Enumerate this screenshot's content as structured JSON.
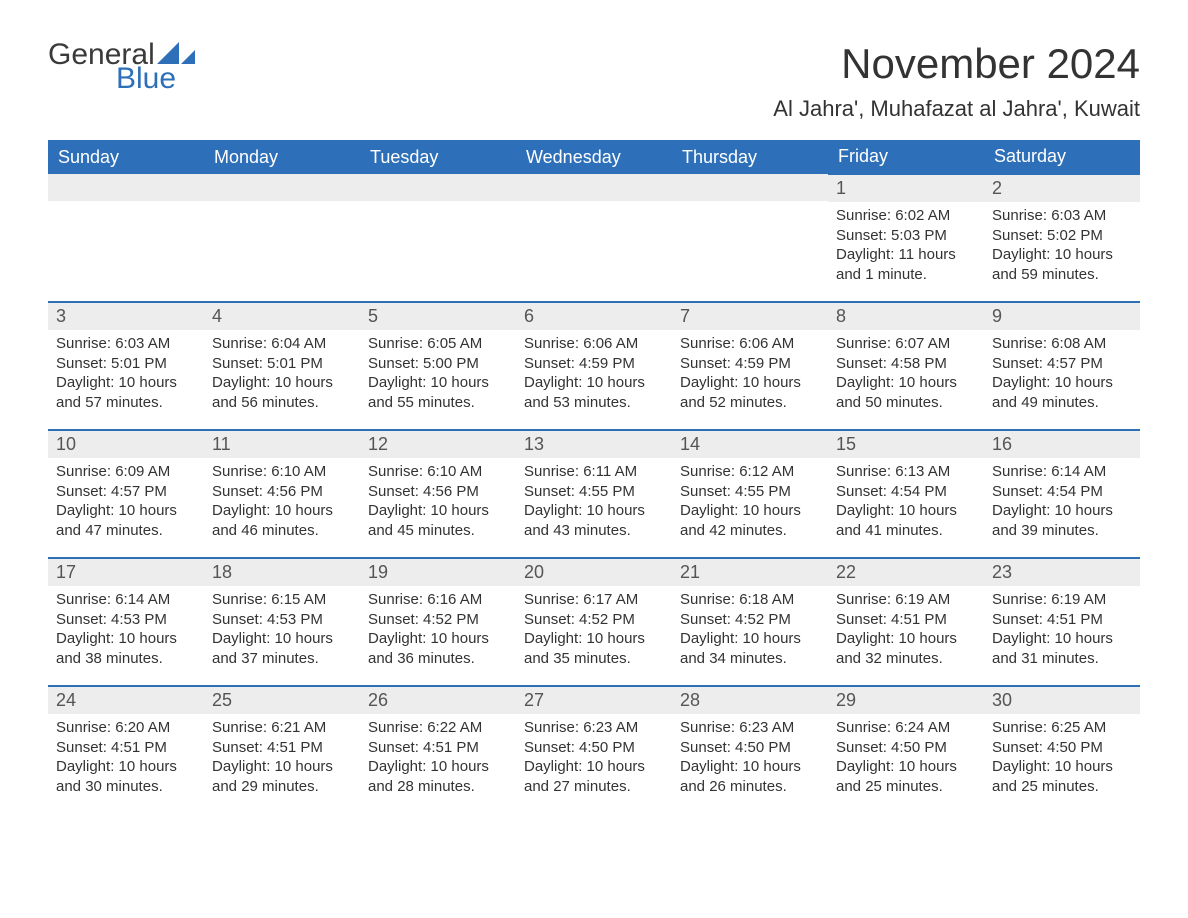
{
  "logo": {
    "word1": "General",
    "word2": "Blue",
    "blue_hex": "#2d6fb8",
    "gray_hex": "#3a3a3a"
  },
  "header": {
    "month_title": "November 2024",
    "location": "Al Jahra', Muhafazat al Jahra', Kuwait"
  },
  "colors": {
    "header_bg": "#2d6fb8",
    "header_text": "#ffffff",
    "row_accent": "#2d6fb8",
    "daynum_bg": "#ededed",
    "body_text": "#333333"
  },
  "weekday_labels": [
    "Sunday",
    "Monday",
    "Tuesday",
    "Wednesday",
    "Thursday",
    "Friday",
    "Saturday"
  ],
  "weeks": [
    [
      null,
      null,
      null,
      null,
      null,
      {
        "n": "1",
        "sunrise": "Sunrise: 6:02 AM",
        "sunset": "Sunset: 5:03 PM",
        "daylight": "Daylight: 11 hours and 1 minute."
      },
      {
        "n": "2",
        "sunrise": "Sunrise: 6:03 AM",
        "sunset": "Sunset: 5:02 PM",
        "daylight": "Daylight: 10 hours and 59 minutes."
      }
    ],
    [
      {
        "n": "3",
        "sunrise": "Sunrise: 6:03 AM",
        "sunset": "Sunset: 5:01 PM",
        "daylight": "Daylight: 10 hours and 57 minutes."
      },
      {
        "n": "4",
        "sunrise": "Sunrise: 6:04 AM",
        "sunset": "Sunset: 5:01 PM",
        "daylight": "Daylight: 10 hours and 56 minutes."
      },
      {
        "n": "5",
        "sunrise": "Sunrise: 6:05 AM",
        "sunset": "Sunset: 5:00 PM",
        "daylight": "Daylight: 10 hours and 55 minutes."
      },
      {
        "n": "6",
        "sunrise": "Sunrise: 6:06 AM",
        "sunset": "Sunset: 4:59 PM",
        "daylight": "Daylight: 10 hours and 53 minutes."
      },
      {
        "n": "7",
        "sunrise": "Sunrise: 6:06 AM",
        "sunset": "Sunset: 4:59 PM",
        "daylight": "Daylight: 10 hours and 52 minutes."
      },
      {
        "n": "8",
        "sunrise": "Sunrise: 6:07 AM",
        "sunset": "Sunset: 4:58 PM",
        "daylight": "Daylight: 10 hours and 50 minutes."
      },
      {
        "n": "9",
        "sunrise": "Sunrise: 6:08 AM",
        "sunset": "Sunset: 4:57 PM",
        "daylight": "Daylight: 10 hours and 49 minutes."
      }
    ],
    [
      {
        "n": "10",
        "sunrise": "Sunrise: 6:09 AM",
        "sunset": "Sunset: 4:57 PM",
        "daylight": "Daylight: 10 hours and 47 minutes."
      },
      {
        "n": "11",
        "sunrise": "Sunrise: 6:10 AM",
        "sunset": "Sunset: 4:56 PM",
        "daylight": "Daylight: 10 hours and 46 minutes."
      },
      {
        "n": "12",
        "sunrise": "Sunrise: 6:10 AM",
        "sunset": "Sunset: 4:56 PM",
        "daylight": "Daylight: 10 hours and 45 minutes."
      },
      {
        "n": "13",
        "sunrise": "Sunrise: 6:11 AM",
        "sunset": "Sunset: 4:55 PM",
        "daylight": "Daylight: 10 hours and 43 minutes."
      },
      {
        "n": "14",
        "sunrise": "Sunrise: 6:12 AM",
        "sunset": "Sunset: 4:55 PM",
        "daylight": "Daylight: 10 hours and 42 minutes."
      },
      {
        "n": "15",
        "sunrise": "Sunrise: 6:13 AM",
        "sunset": "Sunset: 4:54 PM",
        "daylight": "Daylight: 10 hours and 41 minutes."
      },
      {
        "n": "16",
        "sunrise": "Sunrise: 6:14 AM",
        "sunset": "Sunset: 4:54 PM",
        "daylight": "Daylight: 10 hours and 39 minutes."
      }
    ],
    [
      {
        "n": "17",
        "sunrise": "Sunrise: 6:14 AM",
        "sunset": "Sunset: 4:53 PM",
        "daylight": "Daylight: 10 hours and 38 minutes."
      },
      {
        "n": "18",
        "sunrise": "Sunrise: 6:15 AM",
        "sunset": "Sunset: 4:53 PM",
        "daylight": "Daylight: 10 hours and 37 minutes."
      },
      {
        "n": "19",
        "sunrise": "Sunrise: 6:16 AM",
        "sunset": "Sunset: 4:52 PM",
        "daylight": "Daylight: 10 hours and 36 minutes."
      },
      {
        "n": "20",
        "sunrise": "Sunrise: 6:17 AM",
        "sunset": "Sunset: 4:52 PM",
        "daylight": "Daylight: 10 hours and 35 minutes."
      },
      {
        "n": "21",
        "sunrise": "Sunrise: 6:18 AM",
        "sunset": "Sunset: 4:52 PM",
        "daylight": "Daylight: 10 hours and 34 minutes."
      },
      {
        "n": "22",
        "sunrise": "Sunrise: 6:19 AM",
        "sunset": "Sunset: 4:51 PM",
        "daylight": "Daylight: 10 hours and 32 minutes."
      },
      {
        "n": "23",
        "sunrise": "Sunrise: 6:19 AM",
        "sunset": "Sunset: 4:51 PM",
        "daylight": "Daylight: 10 hours and 31 minutes."
      }
    ],
    [
      {
        "n": "24",
        "sunrise": "Sunrise: 6:20 AM",
        "sunset": "Sunset: 4:51 PM",
        "daylight": "Daylight: 10 hours and 30 minutes."
      },
      {
        "n": "25",
        "sunrise": "Sunrise: 6:21 AM",
        "sunset": "Sunset: 4:51 PM",
        "daylight": "Daylight: 10 hours and 29 minutes."
      },
      {
        "n": "26",
        "sunrise": "Sunrise: 6:22 AM",
        "sunset": "Sunset: 4:51 PM",
        "daylight": "Daylight: 10 hours and 28 minutes."
      },
      {
        "n": "27",
        "sunrise": "Sunrise: 6:23 AM",
        "sunset": "Sunset: 4:50 PM",
        "daylight": "Daylight: 10 hours and 27 minutes."
      },
      {
        "n": "28",
        "sunrise": "Sunrise: 6:23 AM",
        "sunset": "Sunset: 4:50 PM",
        "daylight": "Daylight: 10 hours and 26 minutes."
      },
      {
        "n": "29",
        "sunrise": "Sunrise: 6:24 AM",
        "sunset": "Sunset: 4:50 PM",
        "daylight": "Daylight: 10 hours and 25 minutes."
      },
      {
        "n": "30",
        "sunrise": "Sunrise: 6:25 AM",
        "sunset": "Sunset: 4:50 PM",
        "daylight": "Daylight: 10 hours and 25 minutes."
      }
    ]
  ]
}
